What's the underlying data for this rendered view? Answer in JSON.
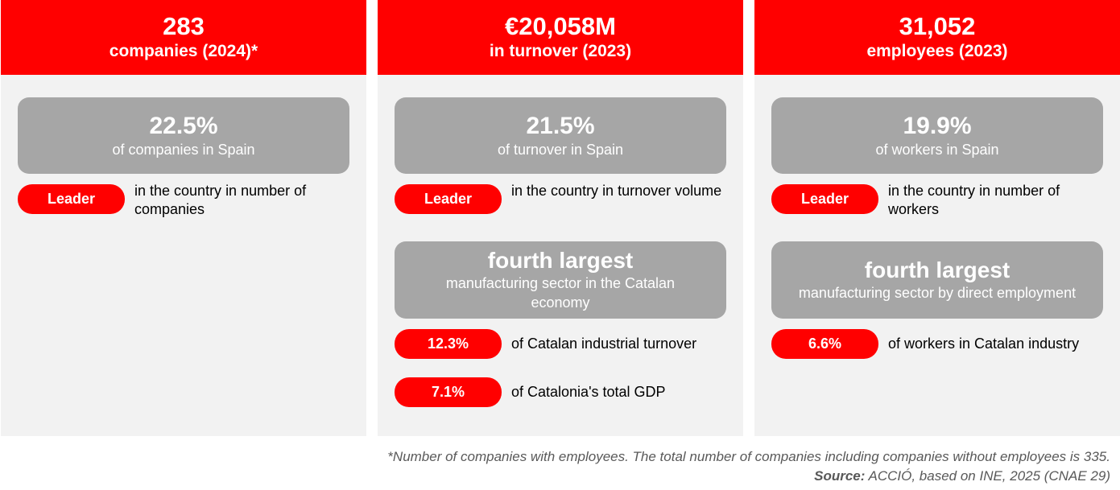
{
  "columns": [
    {
      "header_value": "283",
      "header_label": "companies (2024)*",
      "stat_pct": "22.5%",
      "stat_text": "of companies in Spain",
      "leader_label": "Leader",
      "leader_text": "in the country in number of companies"
    },
    {
      "header_value": "€20,058M",
      "header_label": "in turnover (2023)",
      "stat_pct": "21.5%",
      "stat_text": "of turnover in Spain",
      "leader_label": "Leader",
      "leader_text": "in the country in turnover volume",
      "rank_title": "fourth largest",
      "rank_text": "manufacturing sector in the Catalan economy",
      "extra": [
        {
          "value": "12.3%",
          "text": "of Catalan industrial turnover"
        },
        {
          "value": "7.1%",
          "text": "of Catalonia's total GDP"
        }
      ]
    },
    {
      "header_value": "31,052",
      "header_label": "employees (2023)",
      "stat_pct": "19.9%",
      "stat_text": "of workers in Spain",
      "leader_label": "Leader",
      "leader_text": "in the country in number of workers",
      "rank_title": "fourth largest",
      "rank_text": "manufacturing sector by direct employment",
      "extra": [
        {
          "value": "6.6%",
          "text": "of workers in Catalan industry"
        }
      ]
    }
  ],
  "footnote": {
    "note": "*Number of companies with employees. The total number of companies including companies without employees is 335.",
    "source_label": "Source:",
    "source_text": " ACCIÓ, based on INE, 2025 (CNAE 29)"
  },
  "colors": {
    "accent": "#ff0000",
    "panel": "#f2f2f2",
    "box": "#a6a6a6"
  }
}
